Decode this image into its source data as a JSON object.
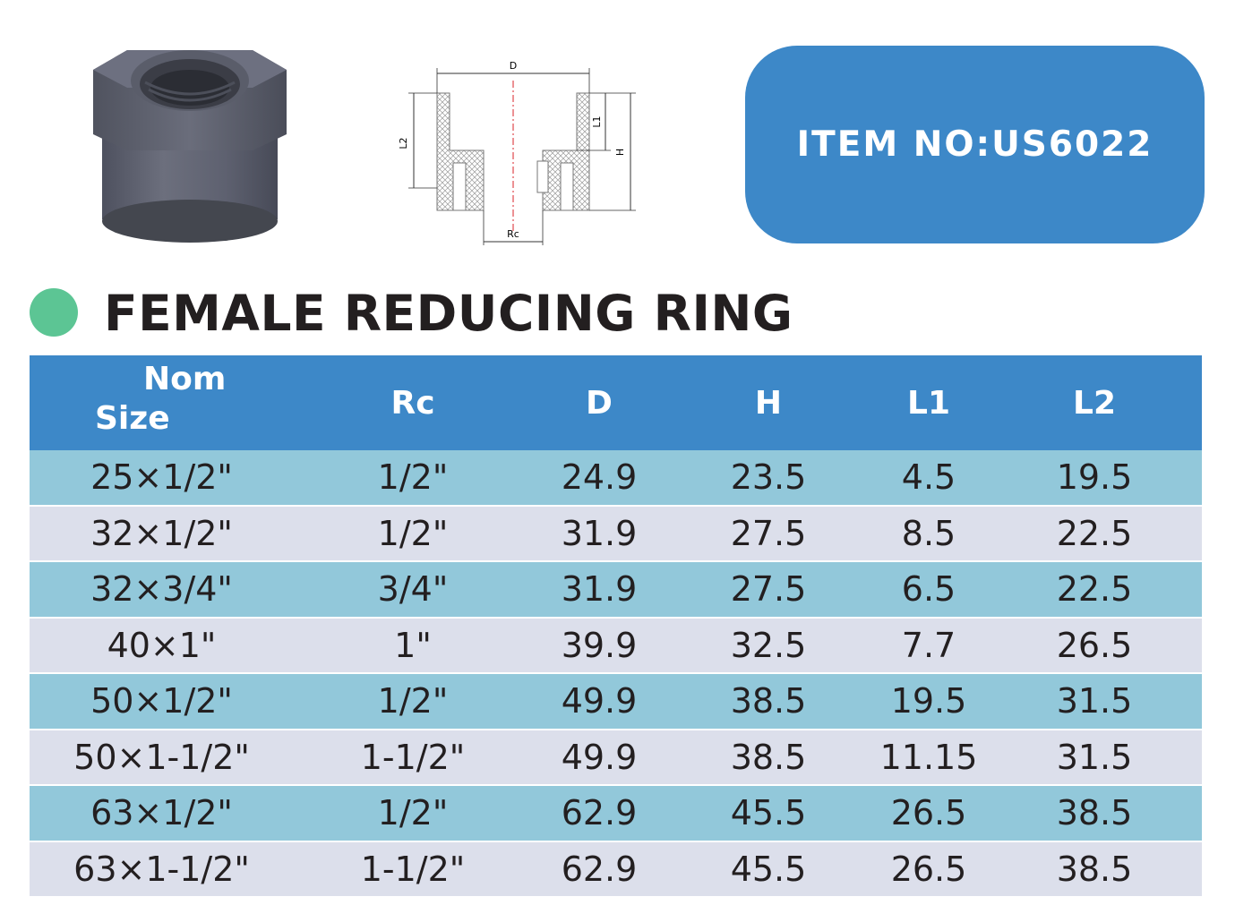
{
  "item_badge": {
    "text": "ITEM NO:US6022"
  },
  "title": "FEMALE REDUCING RING",
  "drawing_labels": {
    "d": "D",
    "l1": "L1",
    "l2": "L2",
    "h": "H",
    "rc": "Rc"
  },
  "table": {
    "headers": {
      "nom_line1": "Nom",
      "nom_line2": "Size",
      "rc": "Rc",
      "d": "D",
      "h": "H",
      "l1": "L1",
      "l2": "L2"
    },
    "rows": [
      [
        "25×1/2\"",
        "1/2\"",
        "24.9",
        "23.5",
        "4.5",
        "19.5"
      ],
      [
        "32×1/2\"",
        "1/2\"",
        "31.9",
        "27.5",
        "8.5",
        "22.5"
      ],
      [
        "32×3/4\"",
        "3/4\"",
        "31.9",
        "27.5",
        "6.5",
        "22.5"
      ],
      [
        "40×1\"",
        "1\"",
        "39.9",
        "32.5",
        "7.7",
        "26.5"
      ],
      [
        "50×1/2\"",
        "1/2\"",
        "49.9",
        "38.5",
        "19.5",
        "31.5"
      ],
      [
        "50×1-1/2\"",
        "1-1/2\"",
        "49.9",
        "38.5",
        "11.15",
        "31.5"
      ],
      [
        "63×1/2\"",
        "1/2\"",
        "62.9",
        "45.5",
        "26.5",
        "38.5"
      ],
      [
        "63×1-1/2\"",
        "1-1/2\"",
        "62.9",
        "45.5",
        "26.5",
        "38.5"
      ]
    ]
  },
  "colors": {
    "header_blue": "#3d88c8",
    "row_blue": "#92c8da",
    "row_grey": "#dcdfeb",
    "dot_green": "#5cc594",
    "product_grey": "#5f6271"
  }
}
